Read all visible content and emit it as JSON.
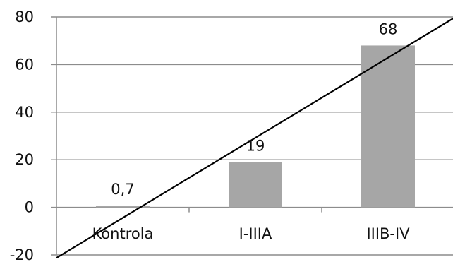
{
  "chart_data": {
    "type": "bar",
    "categories": [
      "Kontrola",
      "I-IIIA",
      "IIIB-IV"
    ],
    "values": [
      0.7,
      19,
      68
    ],
    "value_labels": [
      "0,7",
      "19",
      "68"
    ],
    "ylim": [
      -20,
      80
    ],
    "yticks": [
      "-20",
      "0",
      "20",
      "40",
      "60",
      "80"
    ],
    "grid": true,
    "legend": "none",
    "bar_color": "#a6a6a6",
    "trendline": {
      "type": "linear",
      "color": "#000000"
    }
  }
}
